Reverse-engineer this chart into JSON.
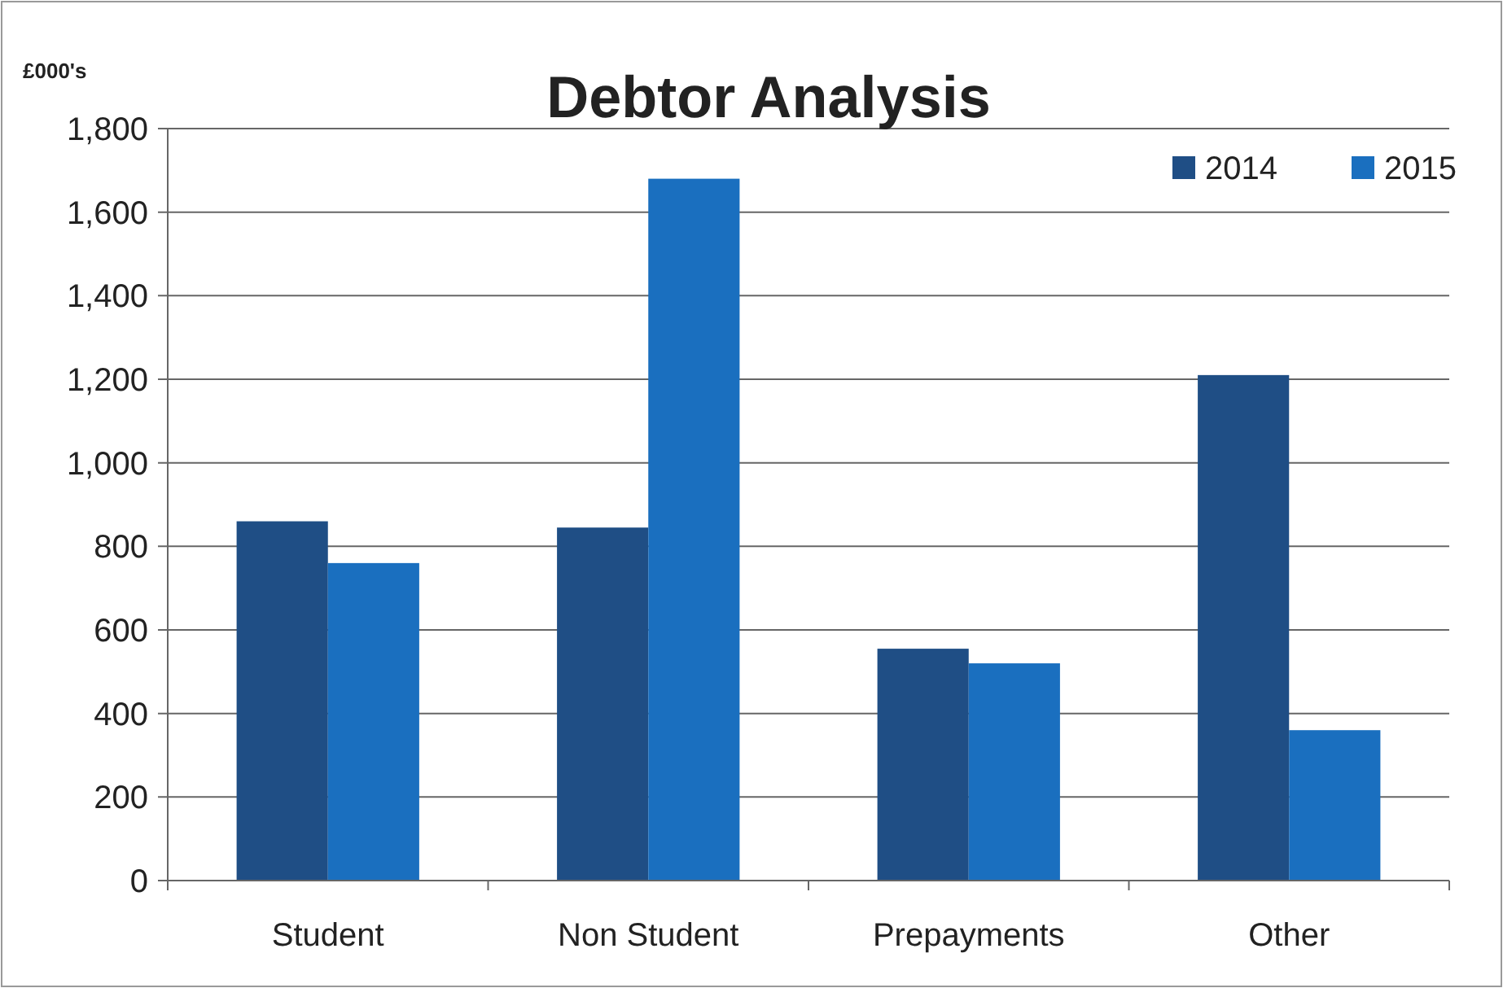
{
  "chart_data": {
    "type": "bar",
    "title": "Debtor Analysis",
    "ylabel": "£000's",
    "categories": [
      "Student",
      "Non Student",
      "Prepayments",
      "Other"
    ],
    "series": [
      {
        "name": "2014",
        "color": "#1f4e85",
        "values": [
          860,
          845,
          555,
          1210
        ]
      },
      {
        "name": "2015",
        "color": "#1a6fbf",
        "values": [
          760,
          1680,
          520,
          360
        ]
      }
    ],
    "ylim": [
      0,
      1800
    ],
    "yticks": [
      {
        "value": 0,
        "label": "0"
      },
      {
        "value": 200,
        "label": "200"
      },
      {
        "value": 400,
        "label": "400"
      },
      {
        "value": 600,
        "label": "600"
      },
      {
        "value": 800,
        "label": "800"
      },
      {
        "value": 1000,
        "label": "1,000"
      },
      {
        "value": 1200,
        "label": "1,200"
      },
      {
        "value": 1400,
        "label": "1,400"
      },
      {
        "value": 1600,
        "label": "1,600"
      },
      {
        "value": 1800,
        "label": "1,800"
      }
    ],
    "grid": "y",
    "legend": "top right"
  }
}
